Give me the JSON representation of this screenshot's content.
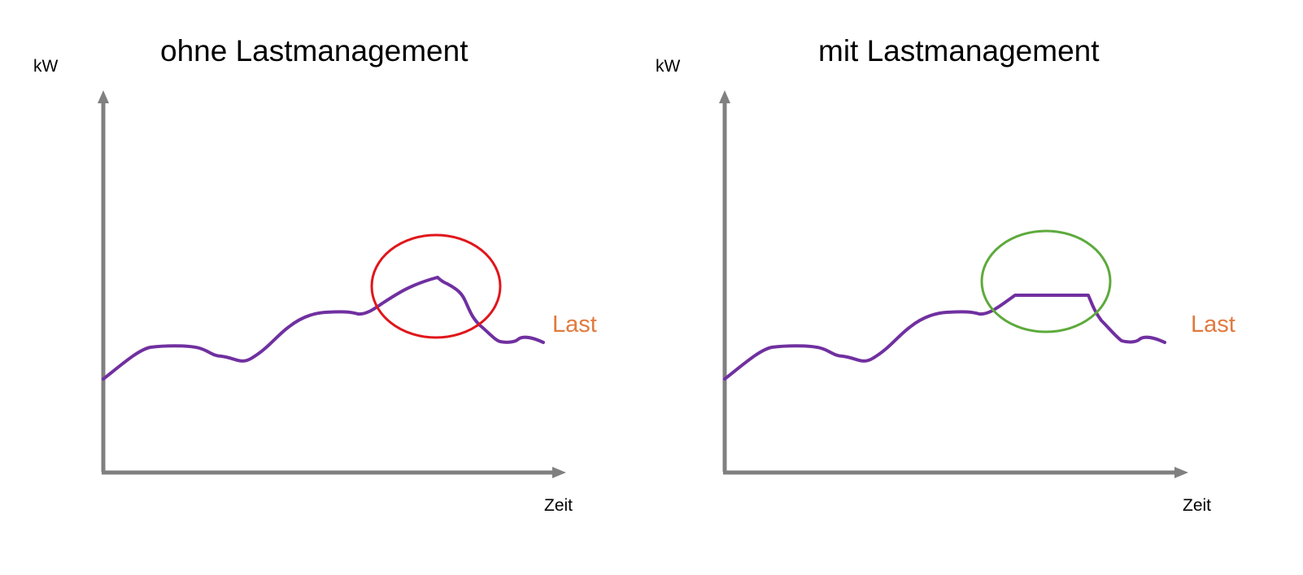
{
  "colors": {
    "axis": "#808080",
    "line": "#7030A0",
    "label_last": "#E07A3F",
    "highlight_without": "#E0161B",
    "highlight_with": "#5DAA3C"
  },
  "panels": [
    {
      "id": "without",
      "title": "ohne Lastmanagement",
      "y_axis_label": "kW",
      "x_axis_label": "Zeit",
      "series_label": "Last",
      "peak_shaved": false
    },
    {
      "id": "with",
      "title": "mit Lastmanagement",
      "y_axis_label": "kW",
      "x_axis_label": "Zeit",
      "series_label": "Last",
      "peak_shaved": true
    }
  ]
}
